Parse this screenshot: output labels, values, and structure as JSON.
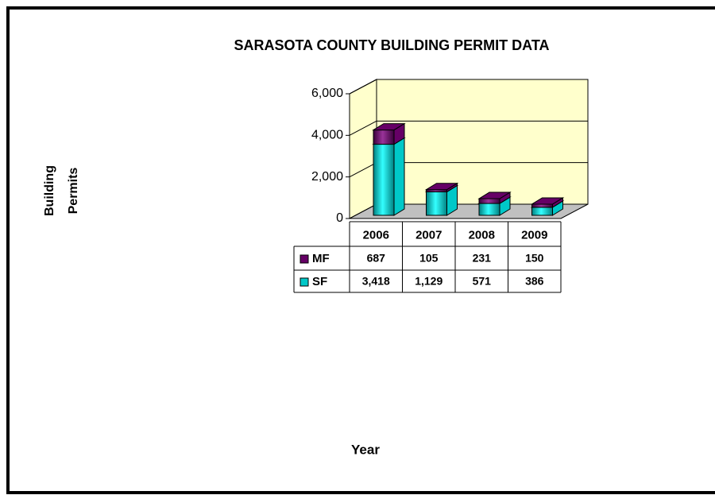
{
  "chart_data": {
    "type": "bar",
    "stacked": true,
    "title": "SARASOTA COUNTY BUILDING PERMIT DATA",
    "y_label": "Building Permits",
    "x_label": "Year",
    "categories": [
      "2006",
      "2007",
      "2008",
      "2009"
    ],
    "series": [
      {
        "name": "SF",
        "color": "#00c8c8",
        "values": [
          3418,
          1129,
          571,
          386
        ],
        "value_labels": [
          "3,418",
          "1,129",
          "571",
          "386"
        ]
      },
      {
        "name": "MF",
        "color": "#660066",
        "values": [
          687,
          105,
          231,
          150
        ]
      }
    ],
    "ylim": [
      0,
      6000
    ],
    "yticks": [
      0,
      {
        "value": 2000,
        "label": "2,000"
      },
      {
        "value": 4000,
        "label": "4,000"
      },
      {
        "value": 6000,
        "label": "6,000"
      }
    ],
    "grid": true
  }
}
